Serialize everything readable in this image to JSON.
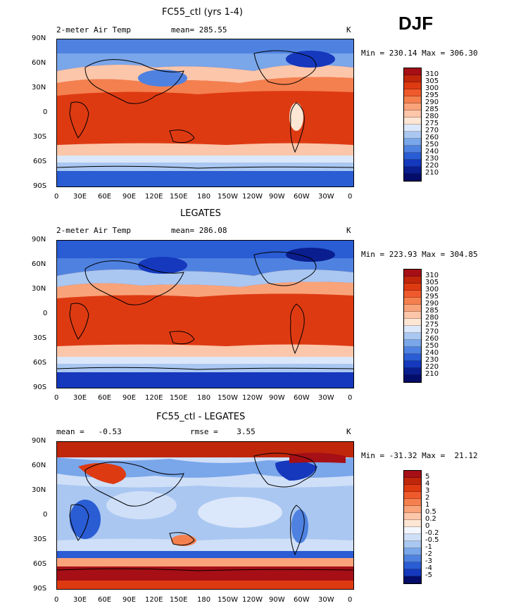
{
  "figure": {
    "season": "DJF"
  },
  "axes": {
    "lat_labels": [
      "90N",
      "60N",
      "30N",
      "0",
      "30S",
      "60S",
      "90S"
    ],
    "lon_labels": [
      "0",
      "30E",
      "60E",
      "90E",
      "120E",
      "150E",
      "180",
      "150W",
      "120W",
      "90W",
      "60W",
      "30W",
      "0"
    ]
  },
  "panels": [
    {
      "title": "FC55_ctl (yrs 1-4)",
      "left_label": "2-meter Air Temp",
      "center_label": "mean= 285.55",
      "right_label": "K",
      "minmax": "Min = 230.14 Max = 306.30",
      "colorbar": {
        "levels": [
          "310",
          "305",
          "300",
          "295",
          "290",
          "285",
          "280",
          "275",
          "270",
          "260",
          "250",
          "240",
          "230",
          "220",
          "210"
        ],
        "colors": [
          "#a50f15",
          "#c0260a",
          "#de3a12",
          "#ef5a2c",
          "#f4804f",
          "#f9a37a",
          "#fcc6aa",
          "#fde6d3",
          "#dbe7fa",
          "#a9c7f1",
          "#7aa6ea",
          "#4f82e0",
          "#2a5cd3",
          "#1538bd",
          "#0a1e8f",
          "#050d6a"
        ]
      }
    },
    {
      "title": "LEGATES",
      "left_label": "2-meter Air Temp",
      "center_label": "mean= 286.08",
      "right_label": "K",
      "minmax": "Min = 223.93 Max = 304.85",
      "colorbar": {
        "levels": [
          "310",
          "305",
          "300",
          "295",
          "290",
          "285",
          "280",
          "275",
          "270",
          "260",
          "250",
          "240",
          "230",
          "220",
          "210"
        ],
        "colors": [
          "#a50f15",
          "#c0260a",
          "#de3a12",
          "#ef5a2c",
          "#f4804f",
          "#f9a37a",
          "#fcc6aa",
          "#fde6d3",
          "#dbe7fa",
          "#a9c7f1",
          "#7aa6ea",
          "#4f82e0",
          "#2a5cd3",
          "#1538bd",
          "#0a1e8f",
          "#050d6a"
        ]
      }
    },
    {
      "title": "FC55_ctl - LEGATES",
      "left_label": "mean =   -0.53",
      "center_label": "rmse =    3.55",
      "right_label": "K",
      "minmax": "Min = -31.32 Max =  21.12",
      "colorbar": {
        "levels": [
          "5",
          "4",
          "3",
          "2",
          "1",
          "0.5",
          "0.2",
          "0",
          "-0.2",
          "-0.5",
          "-1",
          "-2",
          "-3",
          "-4",
          "-5"
        ],
        "colors": [
          "#a50f15",
          "#c0260a",
          "#de3a12",
          "#ef5a2c",
          "#f4804f",
          "#f9a37a",
          "#fcc6aa",
          "#fde6d3",
          "#f2f6fe",
          "#cfdff8",
          "#a9c7f1",
          "#7aa6ea",
          "#4f82e0",
          "#2a5cd3",
          "#1538bd",
          "#050d6a"
        ]
      }
    }
  ]
}
